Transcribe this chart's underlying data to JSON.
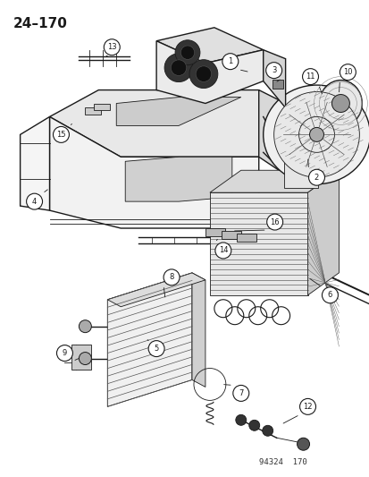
{
  "page_number": "24-170",
  "doc_number": "94324  170",
  "background_color": "#ffffff",
  "line_color": "#1a1a1a",
  "figsize": [
    4.14,
    5.33
  ],
  "dpi": 100,
  "title_text": "24–170",
  "doc_text": "94324  170"
}
